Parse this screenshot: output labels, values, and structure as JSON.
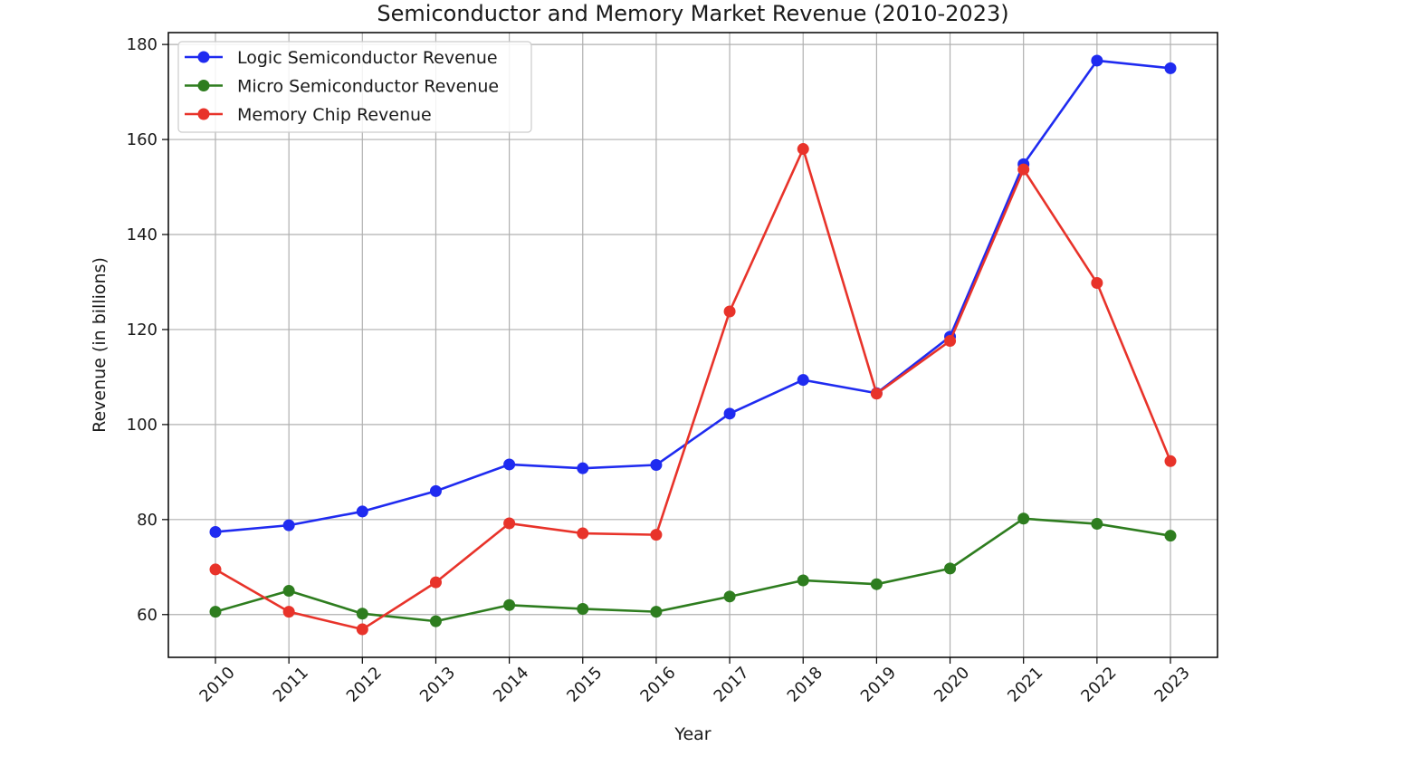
{
  "chart_data": {
    "type": "line",
    "title": "Semiconductor and Memory Market Revenue (2010-2023)",
    "xlabel": "Year",
    "ylabel": "Revenue (in billions)",
    "x": [
      "2010",
      "2011",
      "2012",
      "2013",
      "2014",
      "2015",
      "2016",
      "2017",
      "2018",
      "2019",
      "2020",
      "2021",
      "2022",
      "2023"
    ],
    "ylim": [
      51,
      182.5
    ],
    "yticks": [
      60,
      80,
      100,
      120,
      140,
      160,
      180
    ],
    "grid": true,
    "legend_position": "top-left",
    "series": [
      {
        "name": "Logic Semiconductor Revenue",
        "color": "#1f2bf0",
        "values": [
          77.4,
          78.8,
          81.7,
          86.0,
          91.6,
          90.8,
          91.5,
          102.3,
          109.4,
          106.6,
          118.5,
          154.8,
          176.6,
          175.0
        ]
      },
      {
        "name": "Micro Semiconductor Revenue",
        "color": "#2e7d1f",
        "values": [
          60.6,
          65.0,
          60.2,
          58.6,
          62.0,
          61.2,
          60.6,
          63.8,
          67.2,
          66.4,
          69.7,
          80.2,
          79.1,
          76.6
        ]
      },
      {
        "name": "Memory Chip Revenue",
        "color": "#e8332a",
        "values": [
          69.5,
          60.6,
          56.9,
          66.8,
          79.2,
          77.1,
          76.8,
          123.8,
          158.0,
          106.5,
          117.6,
          153.7,
          129.8,
          92.3
        ]
      }
    ]
  }
}
